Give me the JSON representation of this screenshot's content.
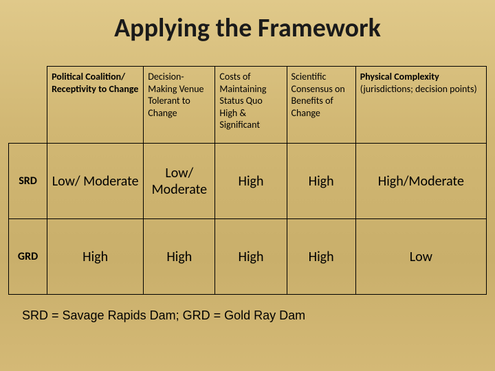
{
  "title": "Applying the Framework",
  "columns": [
    {
      "main": "Political Coalition/ Receptivity to Change",
      "sub": "",
      "bold": true
    },
    {
      "main": "Decision-Making Venue Tolerant to Change",
      "sub": "",
      "bold": false
    },
    {
      "main": "Costs of Maintaining Status Quo High & Significant",
      "sub": "",
      "bold": false
    },
    {
      "main": "Scientific Consensus on Benefits of Change",
      "sub": "",
      "bold": false
    },
    {
      "main": "Physical Complexity",
      "sub": "(jurisdictions; decision points)",
      "bold": true
    }
  ],
  "rows": [
    {
      "label": "SRD",
      "cells": [
        "Low/ Moderate",
        "Low/ Moderate",
        "High",
        "High",
        "High/Moderate"
      ]
    },
    {
      "label": "GRD",
      "cells": [
        "High",
        "High",
        "High",
        "High",
        "Low"
      ]
    }
  ],
  "footnote": "SRD = Savage Rapids Dam; GRD = Gold Ray Dam",
  "colors": {
    "bg_top": "#e0c98a",
    "bg_mid": "#c9af6b",
    "text": "#000000",
    "border": "#000000"
  }
}
